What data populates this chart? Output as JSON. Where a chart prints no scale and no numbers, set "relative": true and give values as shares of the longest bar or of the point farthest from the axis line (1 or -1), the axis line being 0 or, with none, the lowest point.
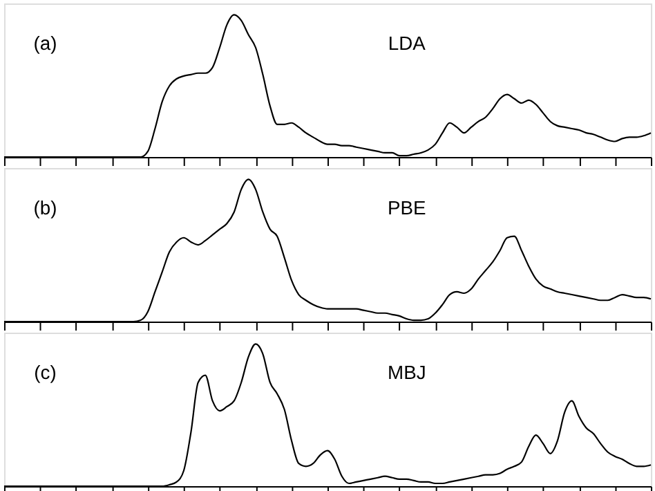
{
  "chart_data": [
    {
      "type": "line",
      "relative": true,
      "tick_labels": false,
      "grid": false,
      "color": "#000000",
      "annotations": [
        "(a)",
        "LDA"
      ],
      "categories": [
        null,
        null,
        null,
        null,
        null,
        null,
        null,
        null,
        null,
        null,
        null,
        null,
        null,
        null,
        null,
        null,
        null,
        null,
        null,
        null,
        null,
        null,
        null,
        null,
        null,
        null,
        null,
        null,
        null,
        null,
        null,
        null,
        null,
        null,
        null,
        null,
        null,
        null,
        null,
        null,
        null,
        null,
        null,
        null,
        null,
        null,
        null,
        null,
        null,
        null,
        null,
        null,
        null,
        null,
        null,
        null,
        null,
        null,
        null,
        null,
        null,
        null,
        null,
        null,
        null,
        null,
        null,
        null,
        null,
        null,
        null,
        null,
        null,
        null,
        null,
        null,
        null,
        null,
        null,
        null,
        null,
        null,
        null,
        null,
        null,
        null,
        null,
        null,
        null,
        null,
        null
      ],
      "values": [
        0,
        0,
        0,
        0,
        0,
        0,
        0,
        0,
        0,
        0,
        0,
        0,
        0,
        0,
        0,
        0,
        0,
        0,
        0,
        0,
        0.04,
        0.2,
        0.39,
        0.5,
        0.55,
        0.57,
        0.58,
        0.59,
        0.59,
        0.63,
        0.77,
        0.93,
        1.0,
        0.96,
        0.86,
        0.77,
        0.58,
        0.36,
        0.23,
        0.23,
        0.24,
        0.21,
        0.17,
        0.14,
        0.11,
        0.09,
        0.09,
        0.08,
        0.08,
        0.07,
        0.06,
        0.05,
        0.04,
        0.03,
        0.03,
        0.01,
        0.01,
        0.02,
        0.03,
        0.05,
        0.09,
        0.17,
        0.24,
        0.21,
        0.17,
        0.21,
        0.25,
        0.28,
        0.34,
        0.41,
        0.44,
        0.41,
        0.38,
        0.4,
        0.37,
        0.31,
        0.25,
        0.22,
        0.21,
        0.2,
        0.19,
        0.17,
        0.16,
        0.14,
        0.12,
        0.11,
        0.13,
        0.14,
        0.14,
        0.15,
        0.17
      ]
    },
    {
      "type": "line",
      "relative": true,
      "tick_labels": false,
      "grid": false,
      "color": "#000000",
      "annotations": [
        "(b)",
        "PBE"
      ],
      "categories": [
        null,
        null,
        null,
        null,
        null,
        null,
        null,
        null,
        null,
        null,
        null,
        null,
        null,
        null,
        null,
        null,
        null,
        null,
        null,
        null,
        null,
        null,
        null,
        null,
        null,
        null,
        null,
        null,
        null,
        null,
        null,
        null,
        null,
        null,
        null,
        null,
        null,
        null,
        null,
        null,
        null,
        null,
        null,
        null,
        null,
        null,
        null,
        null,
        null,
        null,
        null,
        null,
        null,
        null,
        null,
        null,
        null,
        null,
        null,
        null,
        null,
        null,
        null,
        null,
        null,
        null,
        null,
        null,
        null,
        null,
        null,
        null,
        null,
        null,
        null,
        null,
        null,
        null,
        null,
        null,
        null,
        null,
        null,
        null,
        null,
        null,
        null,
        null,
        null,
        null,
        null
      ],
      "values": [
        0,
        0,
        0,
        0,
        0,
        0,
        0,
        0,
        0,
        0,
        0,
        0,
        0,
        0,
        0,
        0,
        0,
        0,
        0,
        0.01,
        0.07,
        0.21,
        0.35,
        0.49,
        0.56,
        0.59,
        0.56,
        0.54,
        0.57,
        0.61,
        0.65,
        0.69,
        0.77,
        0.93,
        1.0,
        0.93,
        0.77,
        0.65,
        0.6,
        0.45,
        0.29,
        0.19,
        0.15,
        0.12,
        0.1,
        0.09,
        0.09,
        0.09,
        0.09,
        0.09,
        0.08,
        0.07,
        0.06,
        0.06,
        0.05,
        0.04,
        0.02,
        0.01,
        0.01,
        0.02,
        0.06,
        0.12,
        0.19,
        0.21,
        0.2,
        0.23,
        0.3,
        0.36,
        0.42,
        0.5,
        0.59,
        0.6,
        0.5,
        0.39,
        0.3,
        0.25,
        0.23,
        0.21,
        0.2,
        0.19,
        0.18,
        0.17,
        0.16,
        0.15,
        0.15,
        0.17,
        0.19,
        0.18,
        0.17,
        0.17,
        0.16
      ]
    },
    {
      "type": "line",
      "relative": true,
      "tick_labels": false,
      "grid": false,
      "color": "#000000",
      "annotations": [
        "(c)",
        "MBJ"
      ],
      "categories": [
        null,
        null,
        null,
        null,
        null,
        null,
        null,
        null,
        null,
        null,
        null,
        null,
        null,
        null,
        null,
        null,
        null,
        null,
        null,
        null,
        null,
        null,
        null,
        null,
        null,
        null,
        null,
        null,
        null,
        null,
        null,
        null,
        null,
        null,
        null,
        null,
        null,
        null,
        null,
        null,
        null,
        null,
        null,
        null,
        null,
        null,
        null,
        null,
        null,
        null,
        null,
        null,
        null,
        null,
        null,
        null,
        null,
        null,
        null,
        null,
        null,
        null,
        null,
        null,
        null,
        null,
        null,
        null,
        null,
        null,
        null,
        null,
        null,
        null,
        null,
        null,
        null,
        null,
        null,
        null,
        null,
        null,
        null,
        null,
        null,
        null,
        null,
        null,
        null,
        null,
        null
      ],
      "values": [
        0,
        0,
        0,
        0,
        0,
        0,
        0,
        0,
        0,
        0,
        0,
        0,
        0,
        0,
        0,
        0,
        0,
        0,
        0,
        0,
        0,
        0,
        0,
        0.01,
        0.03,
        0.11,
        0.38,
        0.73,
        0.78,
        0.6,
        0.53,
        0.56,
        0.6,
        0.73,
        0.91,
        1.0,
        0.93,
        0.73,
        0.65,
        0.54,
        0.32,
        0.16,
        0.14,
        0.16,
        0.22,
        0.25,
        0.19,
        0.07,
        0.02,
        0.03,
        0.04,
        0.05,
        0.06,
        0.07,
        0.06,
        0.05,
        0.05,
        0.04,
        0.03,
        0.03,
        0.02,
        0.02,
        0.03,
        0.04,
        0.05,
        0.06,
        0.07,
        0.08,
        0.08,
        0.09,
        0.12,
        0.14,
        0.17,
        0.28,
        0.36,
        0.3,
        0.23,
        0.32,
        0.52,
        0.6,
        0.49,
        0.41,
        0.37,
        0.3,
        0.24,
        0.21,
        0.19,
        0.16,
        0.14,
        0.14,
        0.15
      ]
    }
  ]
}
